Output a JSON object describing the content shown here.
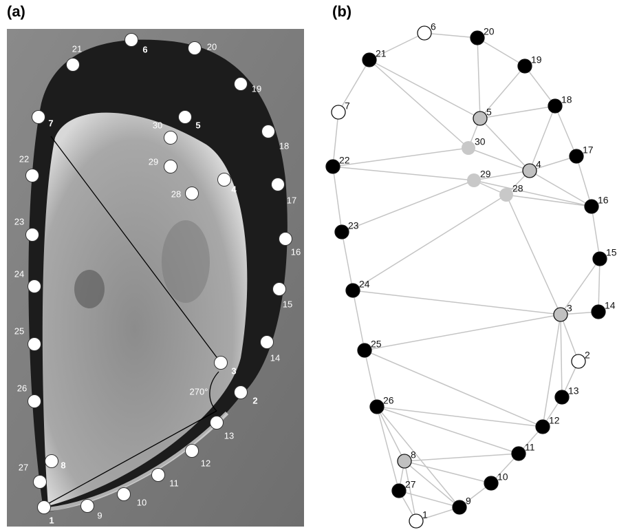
{
  "panels": [
    "(a)",
    "(b)"
  ],
  "panel_a": {
    "angle_label": "270°",
    "landmarks": [
      {
        "label": "1",
        "bold": true
      },
      {
        "label": "2",
        "bold": true
      },
      {
        "label": "3",
        "bold": true
      },
      {
        "label": "4",
        "bold": true
      },
      {
        "label": "5",
        "bold": true
      },
      {
        "label": "6",
        "bold": true
      },
      {
        "label": "7",
        "bold": true
      },
      {
        "label": "8",
        "bold": true
      },
      {
        "label": "9",
        "bold": false
      },
      {
        "label": "10",
        "bold": false
      },
      {
        "label": "11",
        "bold": false
      },
      {
        "label": "12",
        "bold": false
      },
      {
        "label": "13",
        "bold": false
      },
      {
        "label": "14",
        "bold": false
      },
      {
        "label": "15",
        "bold": false
      },
      {
        "label": "16",
        "bold": false
      },
      {
        "label": "17",
        "bold": false
      },
      {
        "label": "18",
        "bold": false
      },
      {
        "label": "19",
        "bold": false
      },
      {
        "label": "20",
        "bold": false
      },
      {
        "label": "21",
        "bold": false
      },
      {
        "label": "22",
        "bold": false
      },
      {
        "label": "23",
        "bold": false
      },
      {
        "label": "24",
        "bold": false
      },
      {
        "label": "25",
        "bold": false
      },
      {
        "label": "26",
        "bold": false
      },
      {
        "label": "27",
        "bold": false
      },
      {
        "label": "28",
        "bold": false
      },
      {
        "label": "29",
        "bold": false
      },
      {
        "label": "30",
        "bold": false
      }
    ]
  },
  "panel_b": {
    "nodes": [
      {
        "label": "1",
        "color": "#ffffff"
      },
      {
        "label": "2",
        "color": "#ffffff"
      },
      {
        "label": "3",
        "color": "#c0c0c0"
      },
      {
        "label": "4",
        "color": "#c0c0c0"
      },
      {
        "label": "5",
        "color": "#c0c0c0"
      },
      {
        "label": "6",
        "color": "#ffffff"
      },
      {
        "label": "7",
        "color": "#ffffff"
      },
      {
        "label": "8",
        "color": "#c0c0c0"
      },
      {
        "label": "9",
        "color": "#000000"
      },
      {
        "label": "10",
        "color": "#000000"
      },
      {
        "label": "11",
        "color": "#000000"
      },
      {
        "label": "12",
        "color": "#000000"
      },
      {
        "label": "13",
        "color": "#000000"
      },
      {
        "label": "14",
        "color": "#000000"
      },
      {
        "label": "15",
        "color": "#000000"
      },
      {
        "label": "16",
        "color": "#000000"
      },
      {
        "label": "17",
        "color": "#000000"
      },
      {
        "label": "18",
        "color": "#000000"
      },
      {
        "label": "19",
        "color": "#000000"
      },
      {
        "label": "20",
        "color": "#000000"
      },
      {
        "label": "21",
        "color": "#000000"
      },
      {
        "label": "22",
        "color": "#000000"
      },
      {
        "label": "23",
        "color": "#000000"
      },
      {
        "label": "24",
        "color": "#000000"
      },
      {
        "label": "25",
        "color": "#000000"
      },
      {
        "label": "26",
        "color": "#000000"
      },
      {
        "label": "27",
        "color": "#000000"
      },
      {
        "label": "28",
        "color": "#c8c8c8"
      },
      {
        "label": "29",
        "color": "#c8c8c8"
      },
      {
        "label": "30",
        "color": "#c8c8c8"
      }
    ]
  }
}
